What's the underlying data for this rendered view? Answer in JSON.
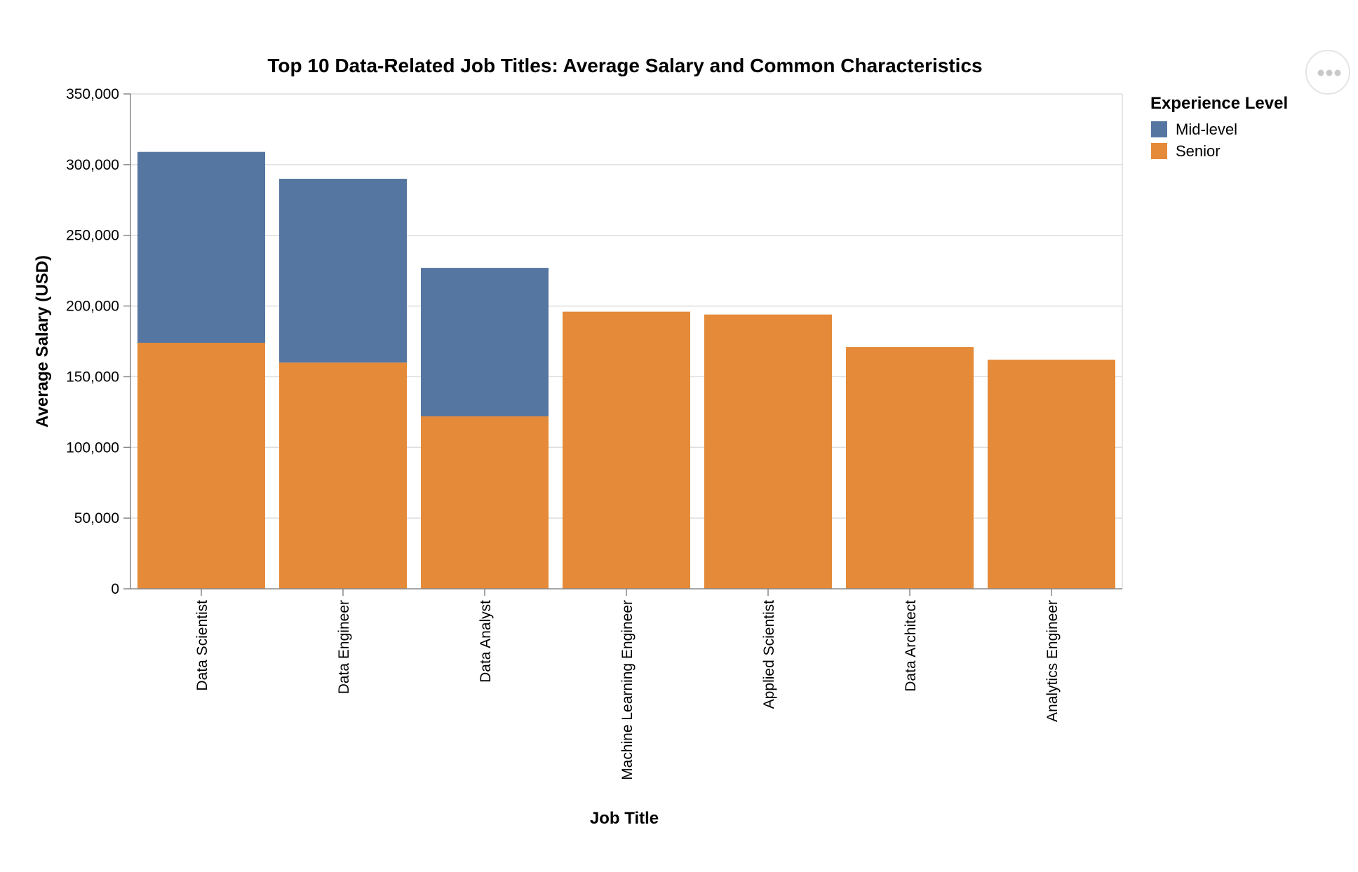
{
  "chart_data": {
    "type": "bar",
    "stacked": true,
    "title": "Top 10 Data-Related Job Titles: Average Salary and Common Characteristics",
    "xlabel": "Job Title",
    "ylabel": "Average Salary (USD)",
    "ylim": [
      0,
      350000
    ],
    "yticks": [
      0,
      50000,
      100000,
      150000,
      200000,
      250000,
      300000,
      350000
    ],
    "grid": true,
    "legend": {
      "title": "Experience Level",
      "position": "right"
    },
    "categories": [
      "Data Scientist",
      "Data Engineer",
      "Data Analyst",
      "Machine Learning Engineer",
      "Applied Scientist",
      "Data Architect",
      "Analytics Engineer"
    ],
    "series": [
      {
        "name": "Senior",
        "color": "#e58a38",
        "values": [
          174000,
          160000,
          122000,
          196000,
          194000,
          171000,
          162000
        ]
      },
      {
        "name": "Mid-level",
        "color": "#5676a2",
        "values": [
          135000,
          130000,
          105000,
          0,
          0,
          0,
          0
        ]
      }
    ]
  },
  "legend_items": [
    {
      "label": "Mid-level",
      "color": "#5676a2"
    },
    {
      "label": "Senior",
      "color": "#e58a38"
    }
  ],
  "icons": {
    "actions_menu": "ellipsis-icon"
  }
}
